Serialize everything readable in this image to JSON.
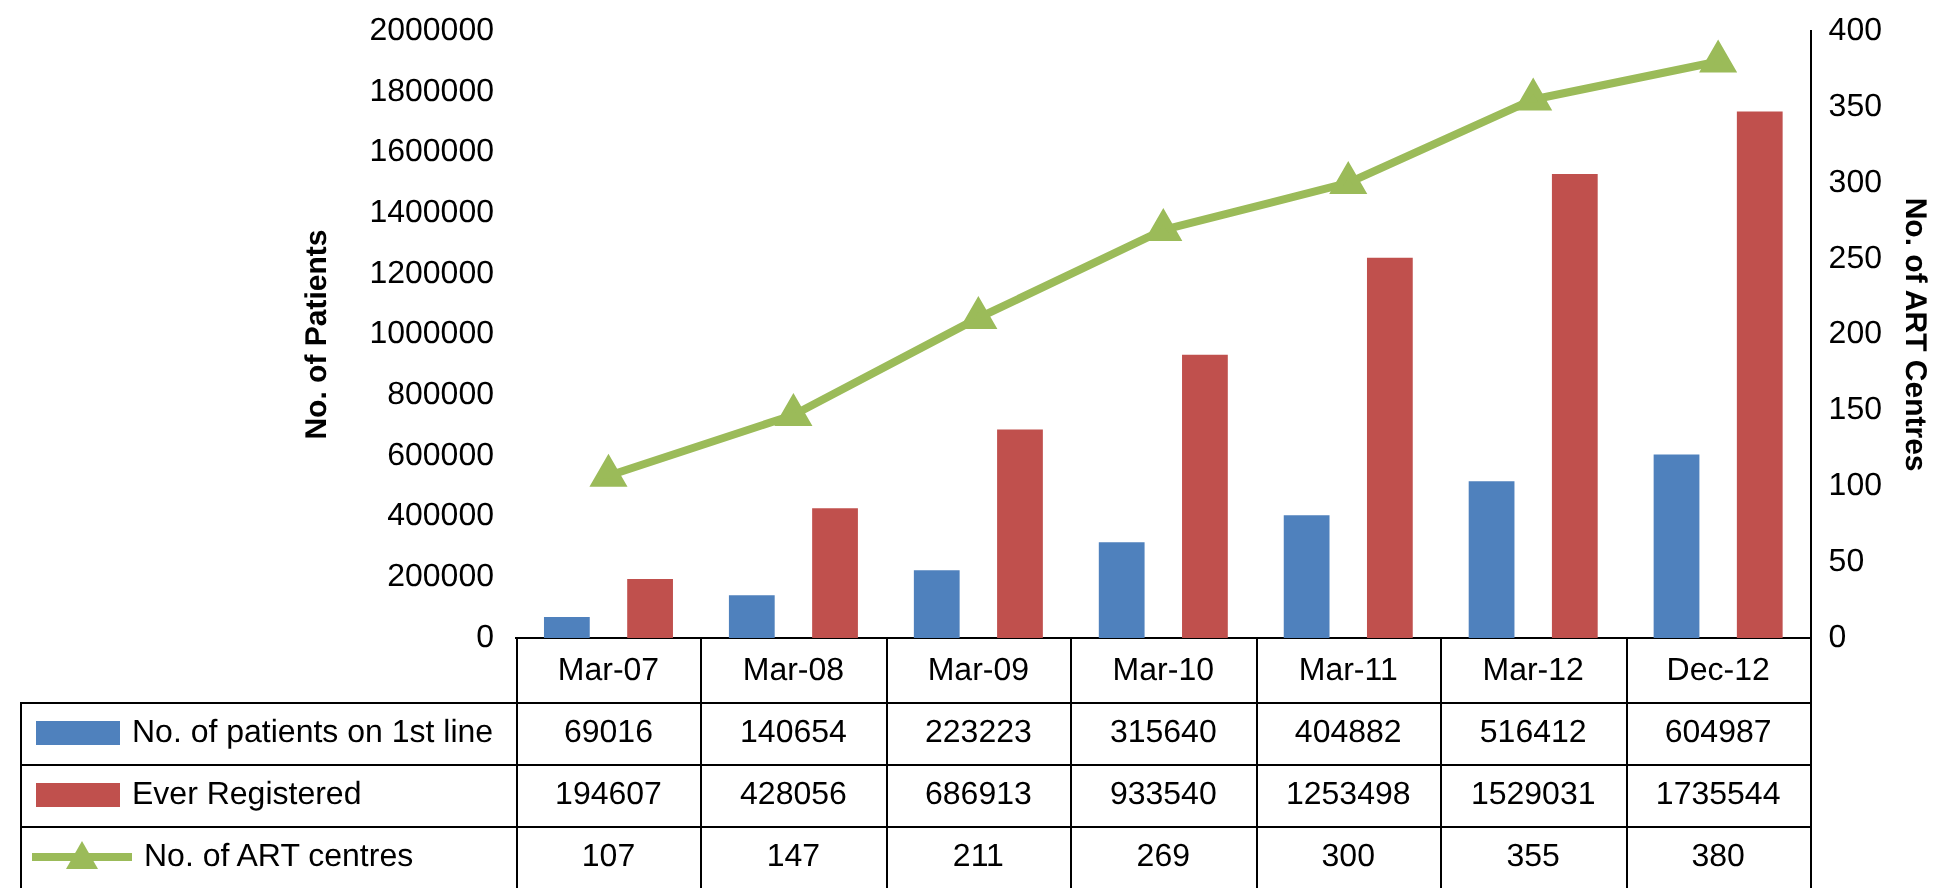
{
  "chart_data": {
    "type": "bar",
    "ylabel": "No. of Patients",
    "y2label": "No. of ART Centres",
    "categories": [
      "Mar-07",
      "Mar-08",
      "Mar-09",
      "Mar-10",
      "Mar-11",
      "Mar-12",
      "Dec-12"
    ],
    "series": [
      {
        "name": "No. of patients on 1st line",
        "color": "#4f81bd",
        "values": [
          69016,
          140654,
          223223,
          315640,
          404882,
          516412,
          604987
        ]
      },
      {
        "name": "Ever Registered",
        "color": "#c0504d",
        "values": [
          194607,
          428056,
          686913,
          933540,
          1253498,
          1529031,
          1735544
        ]
      },
      {
        "name": "No. of ART centres",
        "type": "line",
        "axis": "y2",
        "color": "#9bbb59",
        "marker": "triangle",
        "values": [
          107,
          147,
          211,
          269,
          300,
          355,
          380
        ]
      }
    ],
    "ylim": [
      0,
      2000000
    ],
    "yticks": [
      0,
      200000,
      400000,
      600000,
      800000,
      1000000,
      1200000,
      1400000,
      1600000,
      1800000,
      2000000
    ],
    "y2lim": [
      0,
      400
    ],
    "y2ticks": [
      0,
      50,
      100,
      150,
      200,
      250,
      300,
      350,
      400
    ],
    "grid": false,
    "legend": "bottom",
    "data_labels": true
  }
}
